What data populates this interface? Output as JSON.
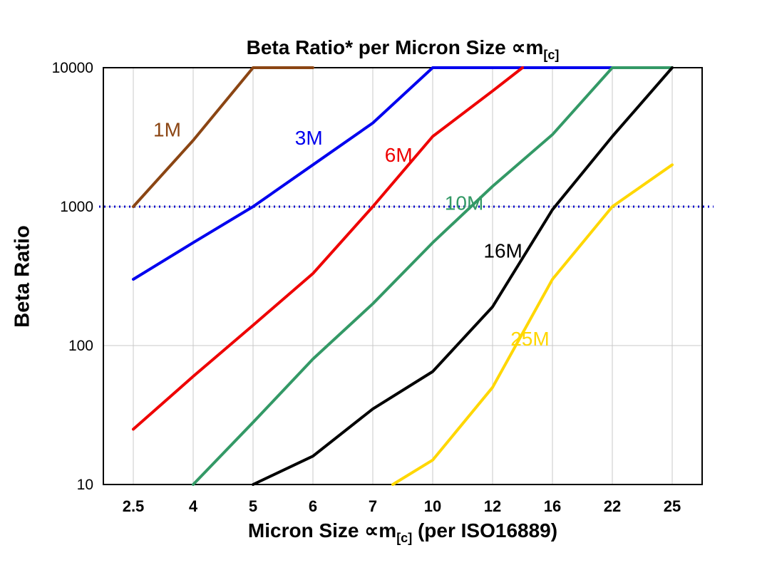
{
  "title": {
    "main": "Beta Ratio* per Micron Size ∝m",
    "sub": "[c]"
  },
  "axes": {
    "y_label": "Beta Ratio",
    "x_label_main": "Micron Size ∝m",
    "x_label_sub": "[c]",
    "x_label_rest": " (per ISO16889)"
  },
  "chart_data": {
    "type": "line",
    "title": "Beta Ratio* per Micron Size ∝m[c]",
    "xlabel": "Micron Size ∝m[c] (per ISO16889)",
    "ylabel": "Beta Ratio",
    "y_scale": "log",
    "ylim": [
      10,
      10000
    ],
    "y_ticks": [
      10,
      100,
      1000,
      10000
    ],
    "y_tick_labels": [
      "10",
      "100",
      "1000",
      "10000"
    ],
    "x_categories": [
      2.5,
      4,
      5,
      6,
      7,
      10,
      12,
      16,
      22,
      25
    ],
    "x_tick_labels": [
      "2.5",
      "4",
      "5",
      "6",
      "7",
      "10",
      "12",
      "16",
      "22",
      "25"
    ],
    "grid": true,
    "grid_color": "#C8C8C8",
    "legend_position": "inline-labels",
    "reference_line": {
      "y": 1000,
      "color": "#0000CC",
      "style": "dotted"
    },
    "series": [
      {
        "name": "1M",
        "color": "#8B4513",
        "points": [
          [
            2.5,
            1000
          ],
          [
            4,
            3000
          ],
          [
            5,
            10000
          ],
          [
            6,
            10000
          ]
        ],
        "label_at": {
          "x": 3.0,
          "y": 3200
        }
      },
      {
        "name": "3M",
        "color": "#0000EE",
        "points": [
          [
            2.5,
            300
          ],
          [
            4,
            550
          ],
          [
            5,
            1000
          ],
          [
            6,
            2000
          ],
          [
            7,
            4000
          ],
          [
            10,
            10000
          ],
          [
            22,
            10000
          ]
        ],
        "label_at": {
          "x": 5.7,
          "y": 2800
        }
      },
      {
        "name": "6M",
        "color": "#EE0000",
        "points": [
          [
            2.5,
            25
          ],
          [
            4,
            60
          ],
          [
            5,
            140
          ],
          [
            6,
            330
          ],
          [
            7,
            1000
          ],
          [
            10,
            3200
          ],
          [
            12,
            6800
          ],
          [
            14,
            10000
          ]
        ],
        "label_at": {
          "x": 7.6,
          "y": 2100
        }
      },
      {
        "name": "10M",
        "color": "#339966",
        "points": [
          [
            4,
            10
          ],
          [
            5,
            28
          ],
          [
            6,
            80
          ],
          [
            7,
            200
          ],
          [
            10,
            550
          ],
          [
            12,
            1400
          ],
          [
            16,
            3300
          ],
          [
            22,
            10000
          ],
          [
            25,
            10000
          ]
        ],
        "label_at": {
          "x": 10.4,
          "y": 950
        }
      },
      {
        "name": "16M",
        "color": "#000000",
        "points": [
          [
            5,
            10
          ],
          [
            6,
            16
          ],
          [
            7,
            35
          ],
          [
            10,
            65
          ],
          [
            12,
            190
          ],
          [
            16,
            950
          ],
          [
            22,
            3200
          ],
          [
            25,
            10000
          ]
        ],
        "label_at": {
          "x": 11.7,
          "y": 430
        }
      },
      {
        "name": "25M",
        "color": "#FFD700",
        "points": [
          [
            8,
            10
          ],
          [
            10,
            15
          ],
          [
            12,
            50
          ],
          [
            16,
            300
          ],
          [
            22,
            1000
          ],
          [
            25,
            2000
          ]
        ],
        "label_at": {
          "x": 13.2,
          "y": 100
        }
      }
    ]
  }
}
